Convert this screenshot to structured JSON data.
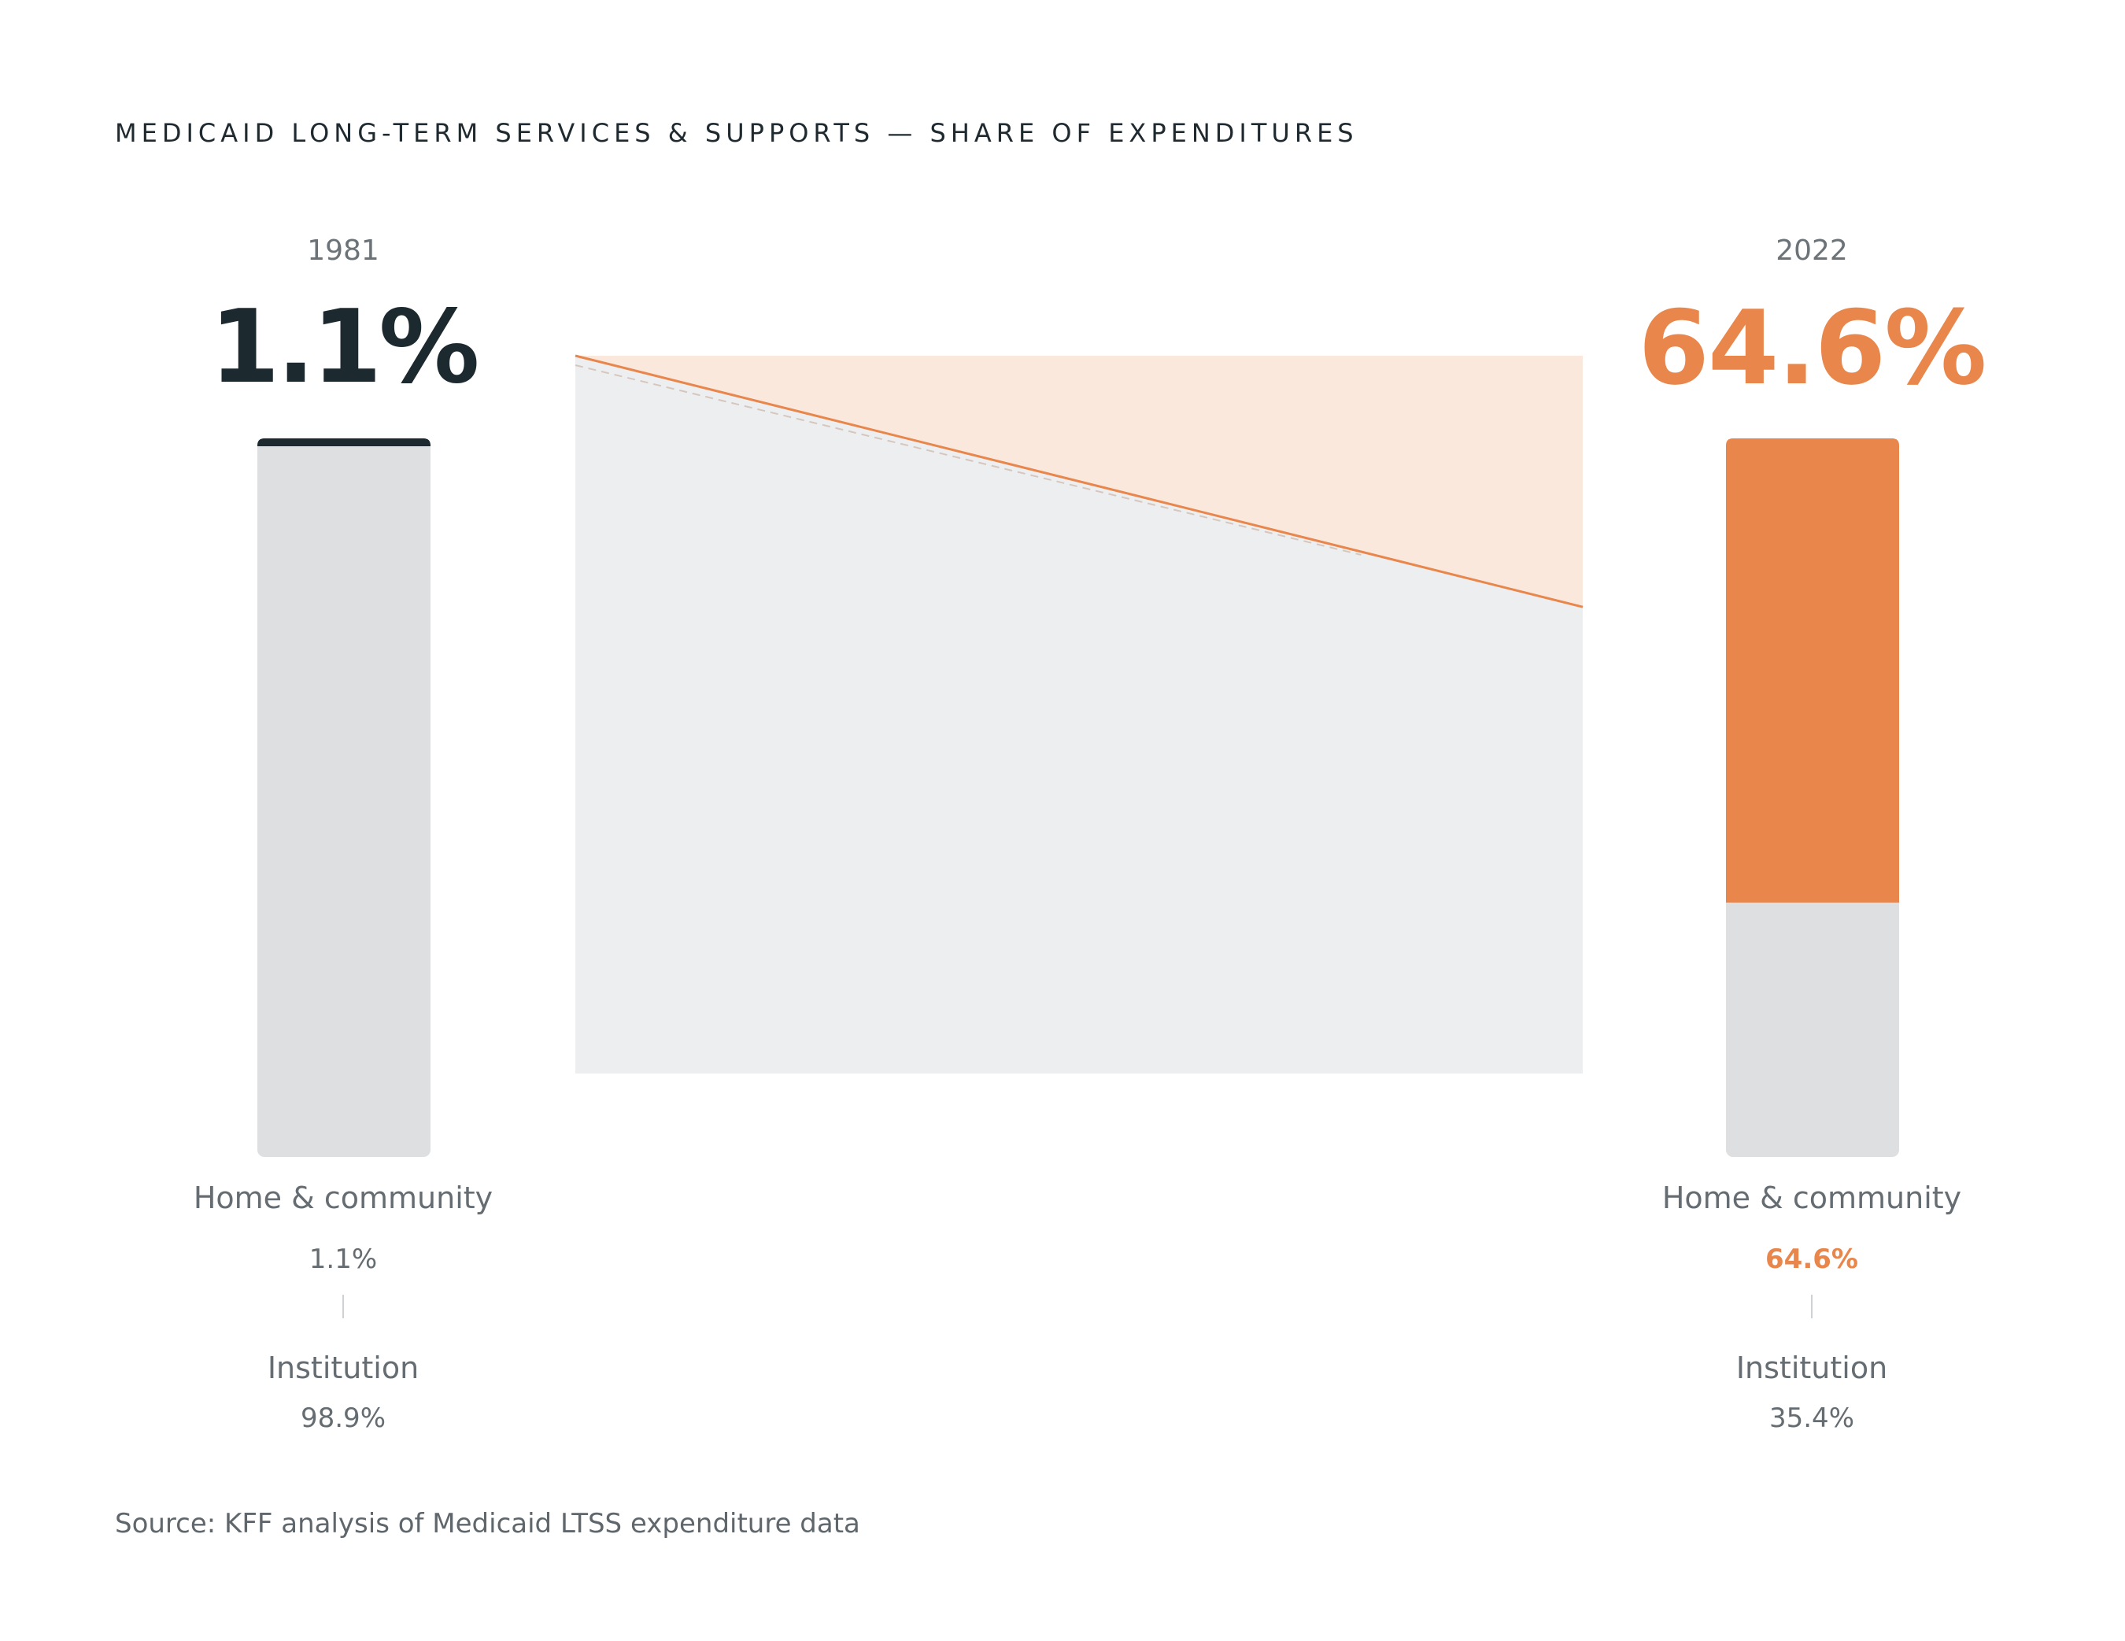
{
  "title": "MEDICAID LONG-TERM SERVICES & SUPPORTS — SHARE OF EXPENDITURES",
  "source": "Source: KFF analysis of Medicaid LTSS expenditure data",
  "colors": {
    "accent": "#e8864b",
    "dark": "#1c2a30",
    "bar_bg": "#dedfe0",
    "area_gray": "#edeef0",
    "area_orange": "#fbe8dd"
  },
  "chart_data": {
    "type": "bar",
    "categories": [
      "1981",
      "2022"
    ],
    "series": [
      {
        "name": "Home & community",
        "values": [
          1.1,
          64.6
        ]
      },
      {
        "name": "Institution",
        "values": [
          98.9,
          35.4
        ]
      }
    ],
    "ylim": [
      0,
      100
    ],
    "stacked": true
  },
  "left": {
    "year": "1981",
    "headline": "1.1%",
    "hcbs_label": "Home & community",
    "hcbs_value": "1.1%",
    "inst_label": "Institution",
    "inst_value": "98.9%"
  },
  "right": {
    "year": "2022",
    "headline": "64.6%",
    "hcbs_label": "Home & community",
    "hcbs_value": "64.6%",
    "inst_label": "Institution",
    "inst_value": "35.4%"
  }
}
